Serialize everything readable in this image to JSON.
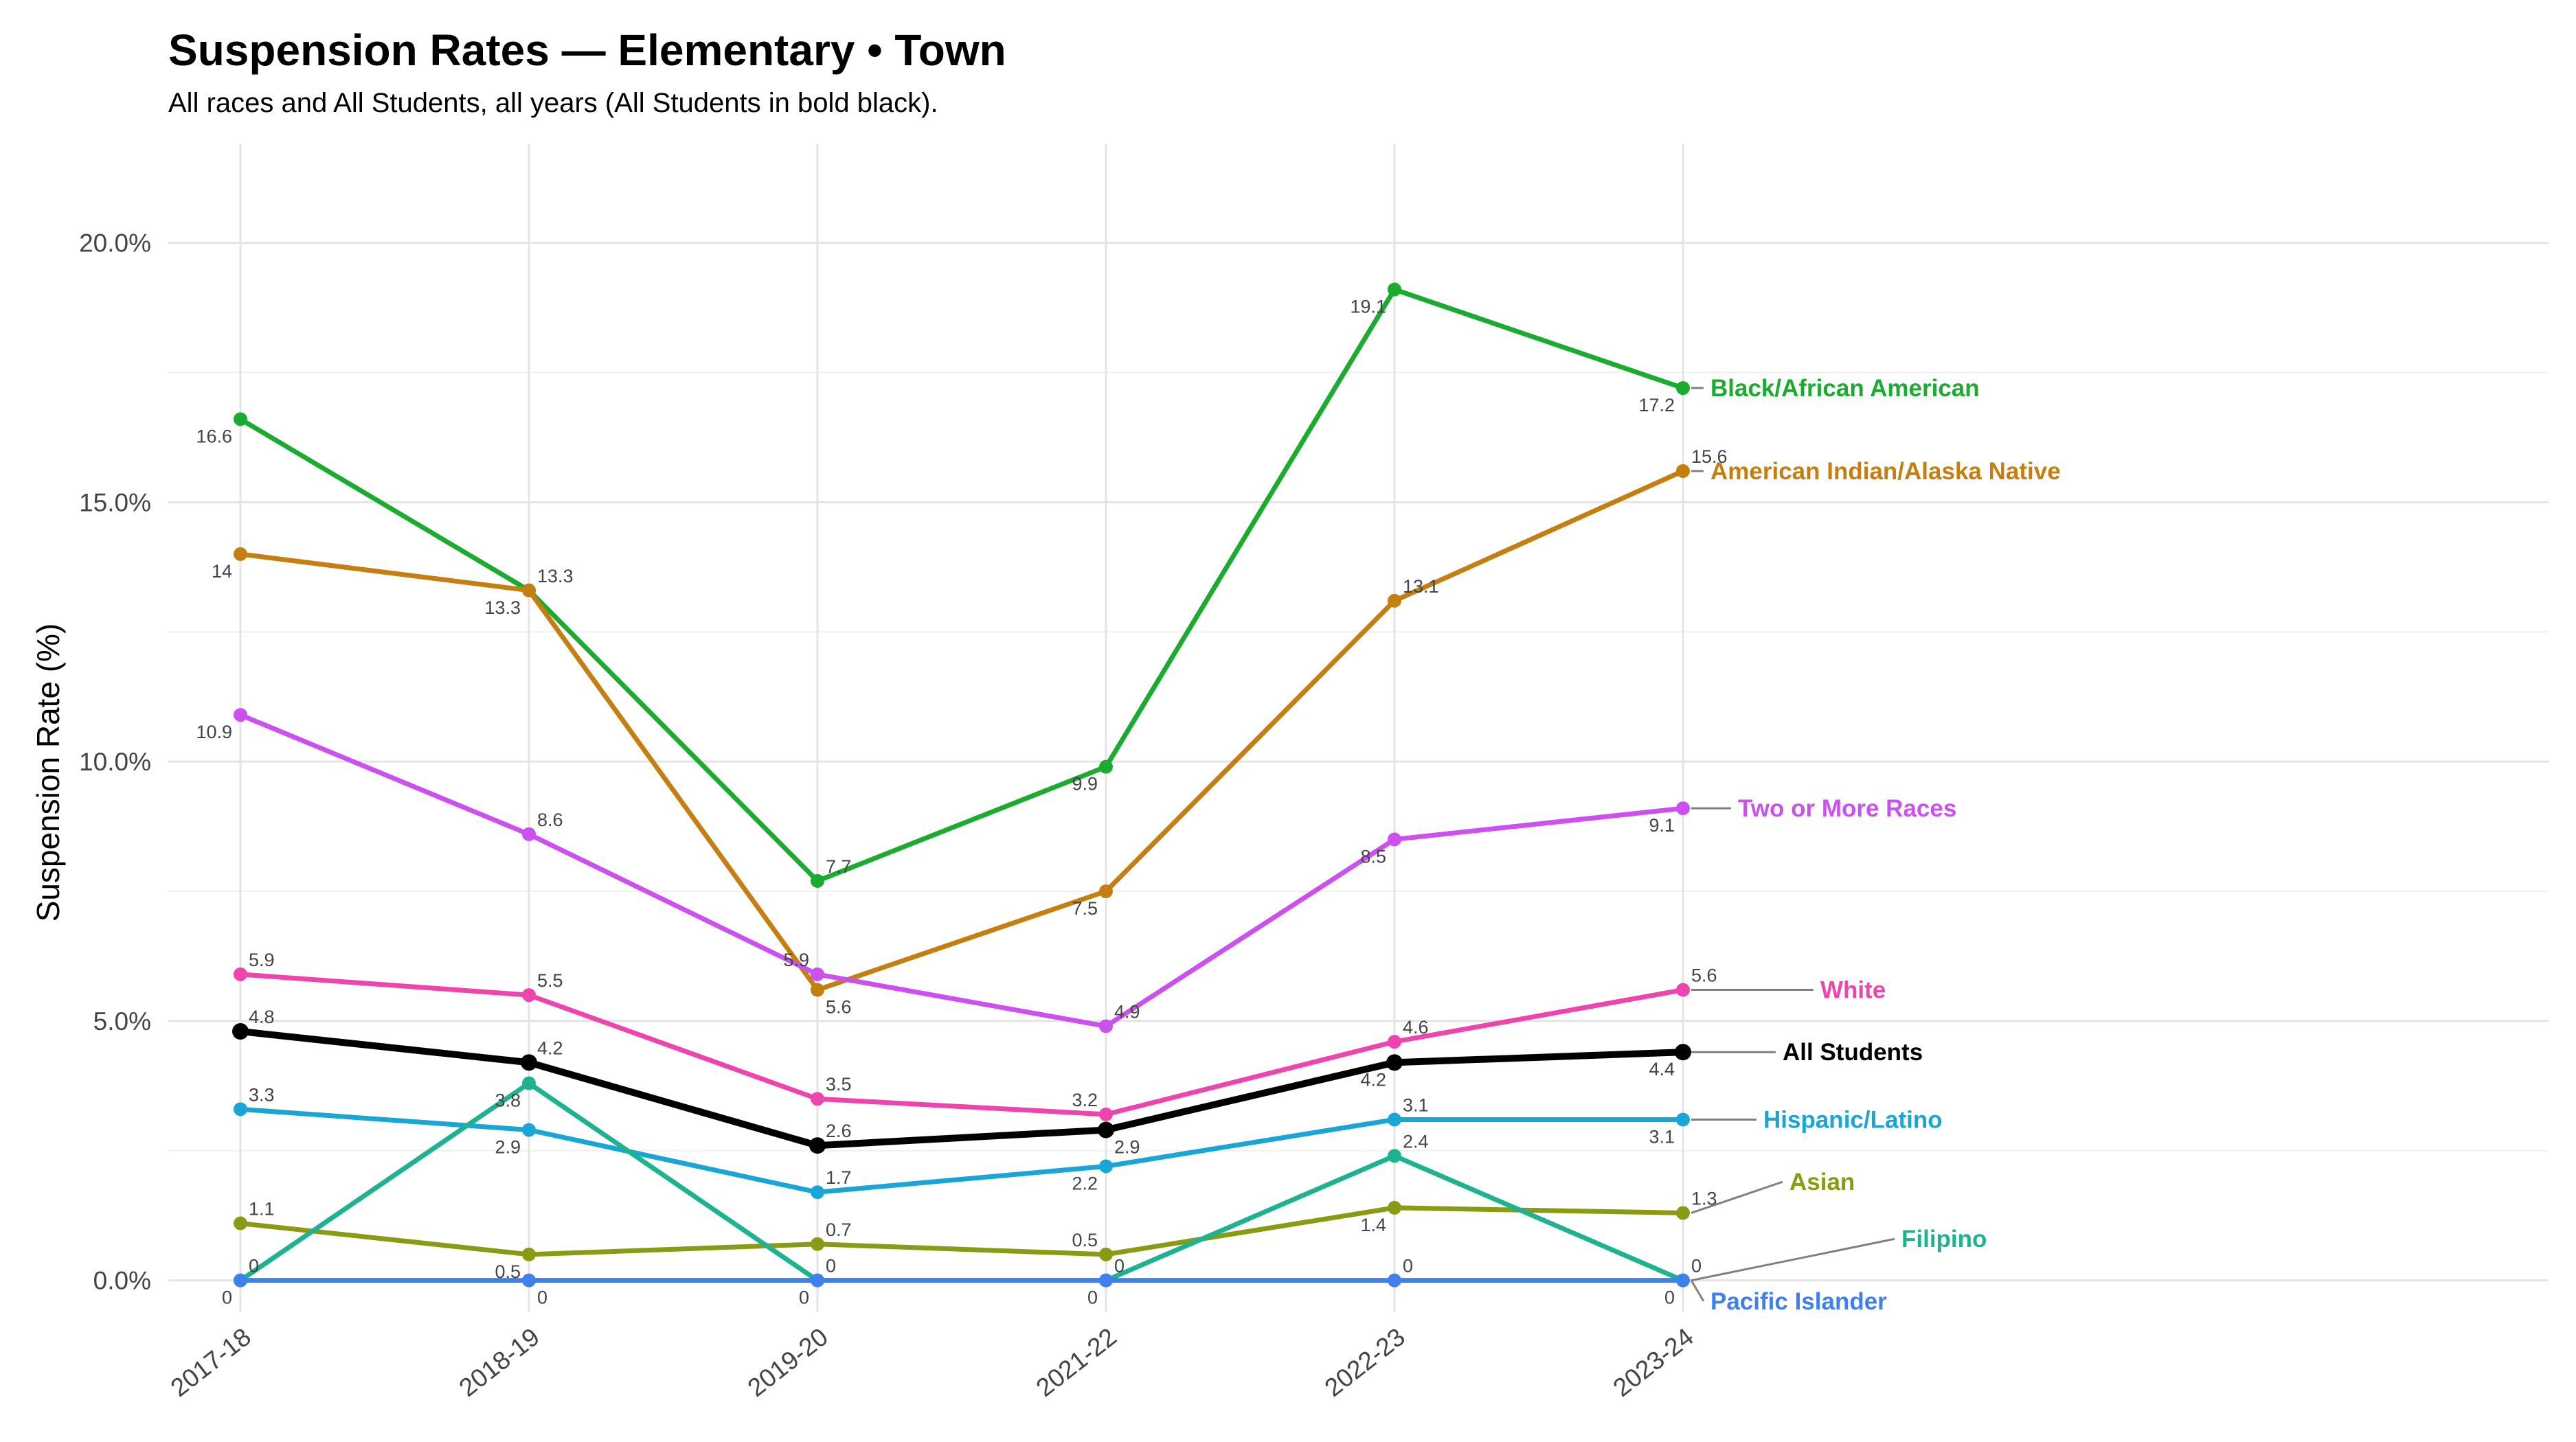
{
  "chart_data": {
    "type": "line",
    "title": "Suspension Rates — Elementary • Town",
    "subtitle": "All races and All Students, all years (All Students in bold black).",
    "xlabel": "",
    "ylabel": "Suspension Rate (%)",
    "ylim": [
      -0.6,
      21.9
    ],
    "y_ticks": [
      "0.0%",
      "5.0%",
      "10.0%",
      "15.0%",
      "20.0%"
    ],
    "y_tick_values": [
      0,
      5,
      10,
      15,
      20
    ],
    "categories": [
      "2017-18",
      "2018-19",
      "2019-20",
      "2021-22",
      "2022-23",
      "2023-24"
    ],
    "grid": true,
    "legend": "direct labels at right end of each line",
    "series": [
      {
        "name": "Black/African American",
        "color": "#1aab2f",
        "values": [
          16.6,
          13.3,
          7.7,
          9.9,
          19.1,
          17.2
        ],
        "labels": [
          "16.6",
          "13.3",
          "7.7",
          "9.9",
          "19.1",
          "17.2"
        ],
        "label_pos": [
          "bl",
          "ar",
          "ar",
          "bl",
          "bl",
          "bl"
        ]
      },
      {
        "name": "American Indian/Alaska Native",
        "color": "#c57f11",
        "values": [
          14.0,
          13.3,
          5.6,
          7.5,
          13.1,
          15.6
        ],
        "labels": [
          "14",
          "13.3",
          "5.6",
          "7.5",
          "13.1",
          "15.6"
        ],
        "label_pos": [
          "bl",
          "bl",
          "br",
          "bl",
          "ar",
          "ar"
        ]
      },
      {
        "name": "Two or More Races",
        "color": "#cc4fef",
        "values": [
          10.9,
          8.6,
          5.9,
          4.9,
          8.5,
          9.1
        ],
        "labels": [
          "10.9",
          "8.6",
          "5.9",
          "4.9",
          "8.5",
          "9.1"
        ],
        "label_pos": [
          "bl",
          "ar",
          "al",
          "ar",
          "bl",
          "bl"
        ]
      },
      {
        "name": "White",
        "color": "#ee44ae",
        "values": [
          5.9,
          5.5,
          3.5,
          3.2,
          4.6,
          5.6
        ],
        "labels": [
          "5.9",
          "5.5",
          "3.5",
          "3.2",
          "4.6",
          "5.6"
        ],
        "label_pos": [
          "ar",
          "ar",
          "ar",
          "al",
          "ar",
          "ar"
        ]
      },
      {
        "name": "All Students",
        "color": "#000000",
        "bold": true,
        "values": [
          4.8,
          4.2,
          2.6,
          2.9,
          4.2,
          4.4
        ],
        "labels": [
          "4.8",
          "4.2",
          "2.6",
          "2.9",
          "4.2",
          "4.4"
        ],
        "label_pos": [
          "ar",
          "ar",
          "ar",
          "br",
          "bl",
          "bl"
        ]
      },
      {
        "name": "Hispanic/Latino",
        "color": "#19a6d6",
        "values": [
          3.3,
          2.9,
          1.7,
          2.2,
          3.1,
          3.1
        ],
        "labels": [
          "3.3",
          "2.9",
          "1.7",
          "2.2",
          "3.1",
          "3.1"
        ],
        "label_pos": [
          "ar",
          "bl",
          "ar",
          "bl",
          "ar",
          "bl"
        ]
      },
      {
        "name": "Asian",
        "color": "#8a9a12",
        "values": [
          1.1,
          0.5,
          0.7,
          0.5,
          1.4,
          1.3
        ],
        "labels": [
          "1.1",
          "0.5",
          "0.7",
          "0.5",
          "1.4",
          "1.3"
        ],
        "label_pos": [
          "ar",
          "bl",
          "ar",
          "al",
          "bl",
          "ar"
        ]
      },
      {
        "name": "Filipino",
        "color": "#1db391",
        "values": [
          0,
          3.8,
          0,
          0,
          2.4,
          0
        ],
        "labels": [
          "",
          "3.8",
          "",
          "",
          "2.4",
          ""
        ],
        "label_pos": [
          "",
          "bl",
          "",
          "",
          "ar",
          ""
        ]
      },
      {
        "name": "Pacific Islander",
        "color": "#4080ee",
        "values": [
          0,
          0,
          0,
          0,
          0,
          0
        ],
        "labels": [
          "0",
          "0",
          "0",
          "0",
          "0",
          "0"
        ],
        "label_pos": [
          "ar",
          "br",
          "ar",
          "ar",
          "ar",
          "ar"
        ],
        "zero_left": [
          "0",
          "",
          "0",
          "0",
          "",
          "0"
        ]
      }
    ],
    "end_labels": [
      {
        "series": "Black/African American",
        "y": 17.2
      },
      {
        "series": "American Indian/Alaska Native",
        "y": 15.6
      },
      {
        "series": "Two or More Races",
        "y": 9.1
      },
      {
        "series": "White",
        "y": 5.6
      },
      {
        "series": "All Students",
        "y": 4.4
      },
      {
        "series": "Hispanic/Latino",
        "y": 3.1
      },
      {
        "series": "Asian",
        "y": 1.9
      },
      {
        "series": "Filipino",
        "y": 0.8
      },
      {
        "series": "Pacific Islander",
        "y": -0.4
      }
    ]
  }
}
